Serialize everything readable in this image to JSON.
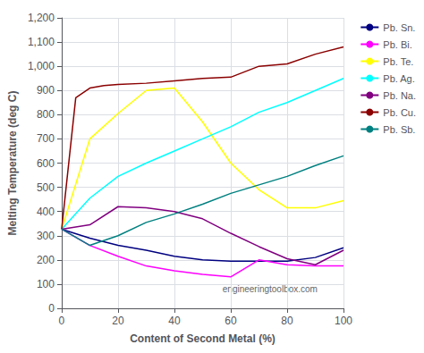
{
  "chart_data": {
    "type": "line",
    "xlabel": "Content of Second Metal (%)",
    "ylabel": "Melting Temperature (deg C)",
    "xlim": [
      0,
      100
    ],
    "ylim": [
      0,
      1200
    ],
    "xticks": [
      0,
      20,
      40,
      60,
      80,
      100
    ],
    "yticks": [
      0,
      100,
      200,
      300,
      400,
      500,
      600,
      700,
      800,
      900,
      1000,
      1100,
      1200
    ],
    "grid": true,
    "legend": "upper right",
    "annotations": [
      "engineeringtoolbox.com"
    ],
    "series": [
      {
        "name": "Pb. Sn.",
        "color": "#000080",
        "x": [
          0,
          10,
          20,
          30,
          40,
          50,
          60,
          70,
          80,
          90,
          100
        ],
        "values": [
          327,
          290,
          260,
          240,
          215,
          200,
          195,
          195,
          195,
          210,
          250
        ]
      },
      {
        "name": "Pb. Bi.",
        "color": "#FF00FF",
        "x": [
          0,
          10,
          20,
          30,
          40,
          50,
          60,
          70,
          80,
          90,
          100
        ],
        "values": [
          327,
          260,
          215,
          175,
          155,
          140,
          130,
          200,
          180,
          175,
          175
        ]
      },
      {
        "name": "Pb. Te.",
        "color": "#FFFF00",
        "x": [
          0,
          10,
          20,
          30,
          40,
          50,
          60,
          70,
          80,
          90,
          100
        ],
        "values": [
          327,
          700,
          805,
          900,
          910,
          770,
          600,
          490,
          415,
          415,
          445
        ]
      },
      {
        "name": "Pb. Ag.",
        "color": "#00FFFF",
        "x": [
          0,
          10,
          20,
          30,
          40,
          50,
          60,
          70,
          80,
          90,
          100
        ],
        "values": [
          327,
          455,
          545,
          600,
          650,
          700,
          750,
          810,
          850,
          900,
          950
        ]
      },
      {
        "name": "Pb. Na.",
        "color": "#800080",
        "x": [
          0,
          10,
          20,
          30,
          40,
          50,
          60,
          70,
          80,
          90,
          100
        ],
        "values": [
          327,
          345,
          420,
          415,
          400,
          370,
          310,
          255,
          205,
          180,
          240
        ]
      },
      {
        "name": "Pb. Cu.",
        "color": "#8B0000",
        "x": [
          0,
          5,
          10,
          15,
          20,
          30,
          40,
          50,
          60,
          70,
          80,
          90,
          100
        ],
        "values": [
          327,
          870,
          910,
          920,
          925,
          930,
          940,
          950,
          955,
          1000,
          1010,
          1050,
          1080
        ]
      },
      {
        "name": "Pb. Sb.",
        "color": "#008080",
        "x": [
          0,
          10,
          20,
          30,
          40,
          50,
          60,
          70,
          80,
          90,
          100
        ],
        "values": [
          327,
          260,
          300,
          355,
          390,
          430,
          475,
          510,
          545,
          590,
          630
        ]
      }
    ]
  }
}
